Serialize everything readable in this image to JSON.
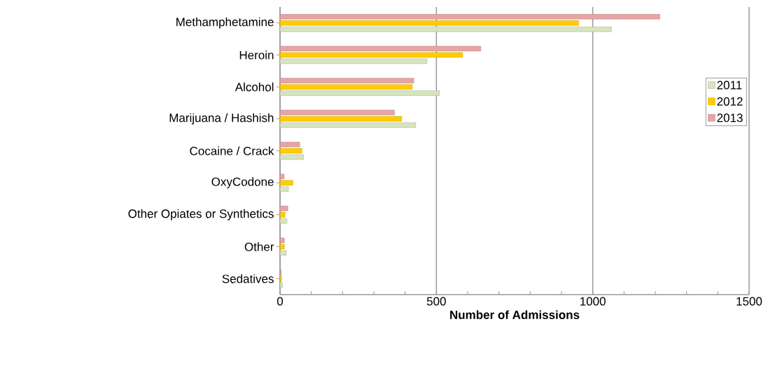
{
  "chart_data": {
    "type": "bar",
    "orientation": "horizontal",
    "xlabel": "Number of Admissions",
    "categories": [
      "Methamphetamine",
      "Heroin",
      "Alcohol",
      "Marijuana / Hashish",
      "Cocaine / Crack",
      "OxyCodone",
      "Other Opiates or Synthetics",
      "Other",
      "Sedatives"
    ],
    "series": [
      {
        "name": "2011",
        "color": "#d7e4bd",
        "values": [
          1060,
          470,
          510,
          434,
          75,
          27,
          22,
          20,
          8
        ]
      },
      {
        "name": "2012",
        "color": "#ffcc00",
        "values": [
          955,
          584,
          423,
          389,
          70,
          41,
          16,
          14,
          5
        ]
      },
      {
        "name": "2013",
        "color": "#e6a5a5",
        "values": [
          1215,
          642,
          428,
          366,
          63,
          13,
          25,
          14,
          4
        ]
      }
    ],
    "xlim": [
      0,
      1500
    ],
    "xticks": [
      0,
      500,
      1000,
      1500
    ],
    "grid": "x",
    "legend": "right"
  }
}
